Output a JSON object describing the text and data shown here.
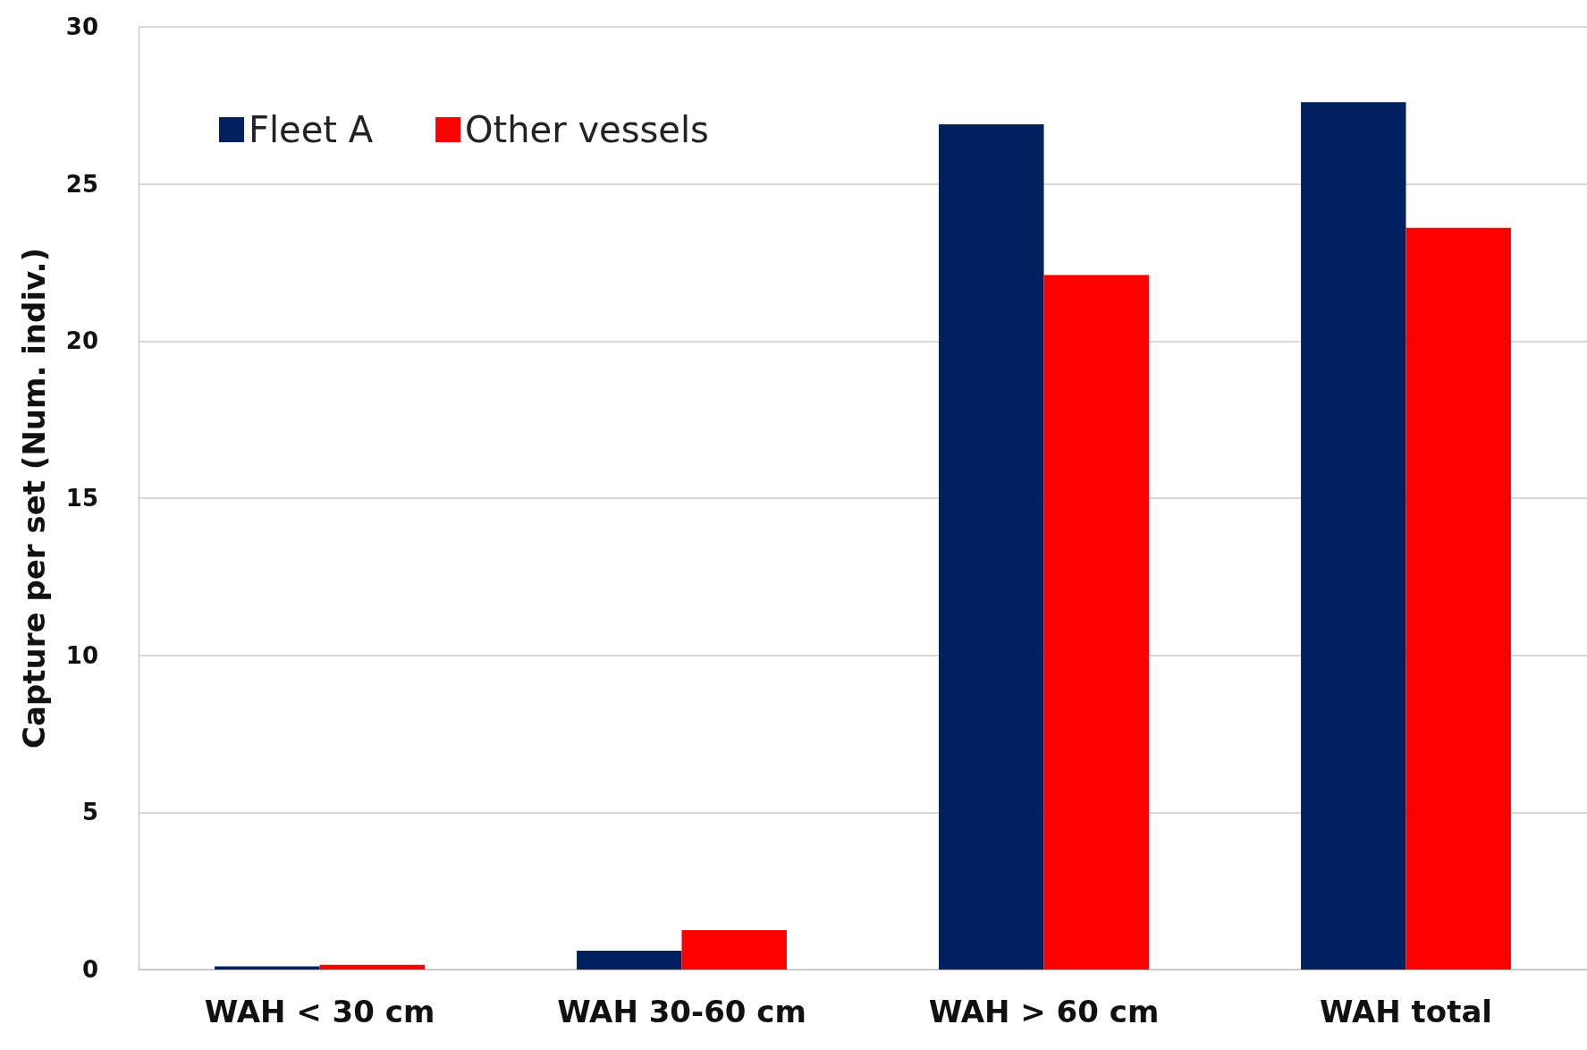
{
  "chart_data": {
    "type": "bar",
    "ylabel": "Capture per set (Num. indiv.)",
    "categories": [
      "WAH < 30 cm",
      "WAH 30-60 cm",
      "WAH > 60 cm",
      "WAH total"
    ],
    "series": [
      {
        "name": "Fleet A",
        "color": "#002060",
        "values": [
          0.1,
          0.6,
          26.9,
          27.6
        ]
      },
      {
        "name": "Other vessels",
        "color": "#ff0000",
        "values": [
          0.15,
          1.25,
          22.1,
          23.6
        ]
      }
    ],
    "ylim": [
      0,
      30
    ],
    "yticks": [
      0,
      5,
      10,
      15,
      20,
      25,
      30
    ],
    "grid": "y",
    "legend": "top left"
  }
}
